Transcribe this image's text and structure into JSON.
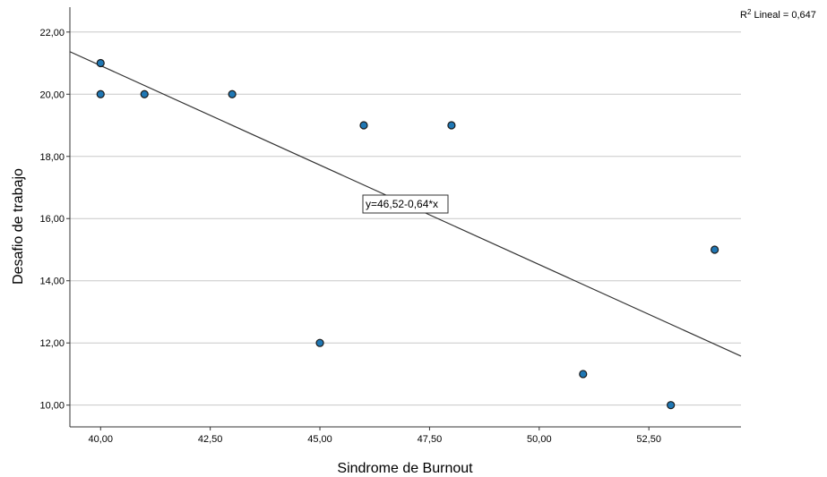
{
  "chart_data": {
    "type": "scatter",
    "xlabel": "Sindrome de Burnout",
    "ylabel": "Desafio de trabajo",
    "xlim": [
      39.3,
      54.6
    ],
    "ylim": [
      9.3,
      22.8
    ],
    "x_ticks": [
      40,
      42.5,
      45,
      47.5,
      50,
      52.5
    ],
    "x_tick_labels": [
      "40,00",
      "42,50",
      "45,00",
      "47,50",
      "50,00",
      "52,50"
    ],
    "y_ticks": [
      10,
      12,
      14,
      16,
      18,
      20,
      22
    ],
    "y_tick_labels": [
      "10,00",
      "12,00",
      "14,00",
      "16,00",
      "18,00",
      "20,00",
      "22,00"
    ],
    "grid": "horizontal",
    "points": [
      {
        "x": 40,
        "y": 21
      },
      {
        "x": 40,
        "y": 20
      },
      {
        "x": 41,
        "y": 20
      },
      {
        "x": 43,
        "y": 20
      },
      {
        "x": 45,
        "y": 12
      },
      {
        "x": 46,
        "y": 19
      },
      {
        "x": 48,
        "y": 19
      },
      {
        "x": 51,
        "y": 11
      },
      {
        "x": 53,
        "y": 10
      },
      {
        "x": 54,
        "y": 15
      }
    ],
    "fit_line": {
      "intercept": 46.52,
      "slope": -0.64
    },
    "fit_equation": "y=46,52-0,64*x",
    "r2_prefix": "R",
    "r2_sup": "2",
    "r2_rest": " Lineal = 0,647",
    "colors": {
      "point_fill": "#1f77b4",
      "point_stroke": "#1a1a1a",
      "line": "#333333",
      "grid": "#c8c8c8",
      "axis": "#333333"
    }
  }
}
